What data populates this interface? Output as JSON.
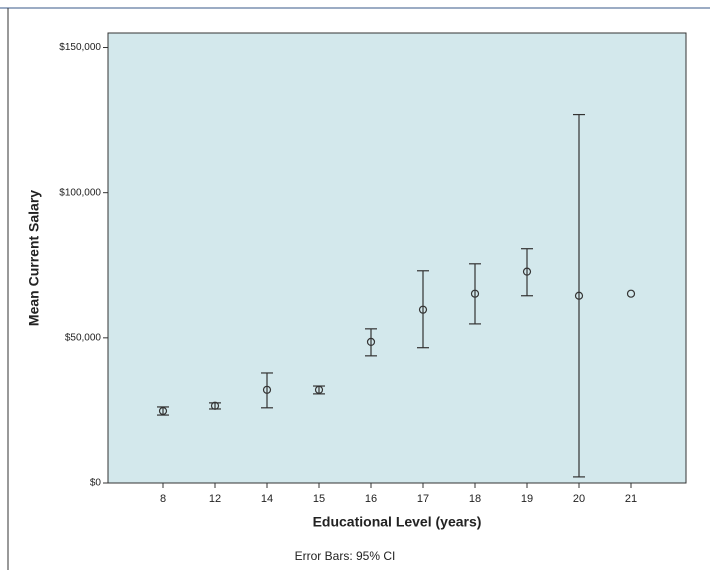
{
  "chart_data": {
    "type": "errorbar",
    "x_label": "Educational Level (years)",
    "y_label": "Mean Current Salary",
    "footnote": "Error Bars: 95% CI",
    "categories": [
      "8",
      "12",
      "14",
      "15",
      "16",
      "17",
      "18",
      "19",
      "20",
      "21"
    ],
    "series": [
      {
        "name": "Mean Current Salary",
        "color": "#333333",
        "values": [
          24800,
          26600,
          32100,
          32100,
          48600,
          59700,
          65200,
          72800,
          64500,
          65200
        ],
        "ci_low": [
          23400,
          25500,
          25900,
          30700,
          43800,
          46600,
          54800,
          64500,
          2100,
          null
        ],
        "ci_high": [
          26200,
          27600,
          37900,
          33400,
          53100,
          73100,
          75500,
          80700,
          126900,
          null
        ]
      }
    ],
    "ylim": [
      0,
      155000
    ],
    "yticks": [
      {
        "value": 0,
        "label": "$0"
      },
      {
        "value": 50000,
        "label": "$50,000"
      },
      {
        "value": 100000,
        "label": "$100,000"
      },
      {
        "value": 150000,
        "label": "$150,000"
      }
    ],
    "grid": false
  }
}
